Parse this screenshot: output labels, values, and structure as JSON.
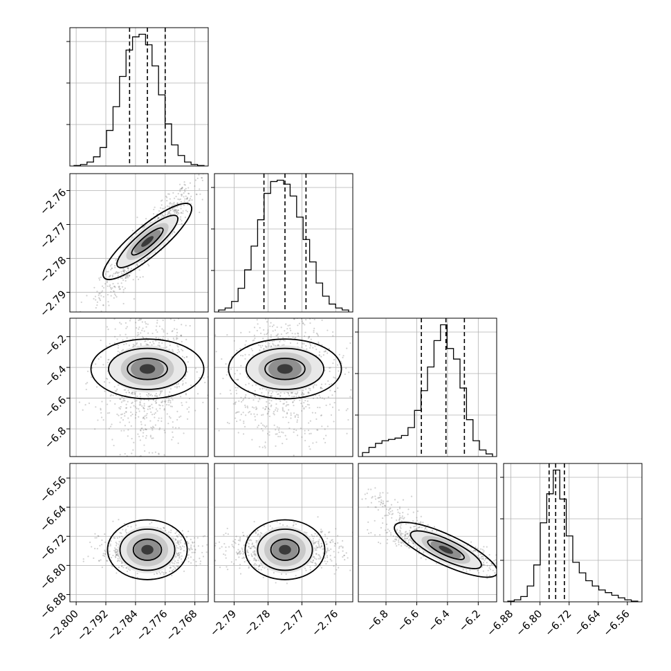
{
  "chart_data": {
    "type": "corner",
    "parameters": [
      {
        "index": 0,
        "range": [
          -2.8017,
          -2.7644
        ],
        "ticks": [
          -2.8,
          -2.792,
          -2.784,
          -2.776,
          -2.768
        ],
        "tick_labels": [
          "−2.800",
          "−2.792",
          "−2.784",
          "−2.776",
          "−2.768"
        ],
        "hist_counts": [
          0.4,
          1.2,
          3,
          7,
          14,
          27,
          45,
          68,
          88,
          98,
          100,
          92,
          76,
          54,
          32,
          16,
          8,
          3,
          1.2,
          0.4
        ],
        "quantiles": [
          -2.7856,
          -2.7808,
          -2.776
        ]
      },
      {
        "index": 1,
        "range": [
          -2.7958,
          -2.755
        ],
        "ticks": [
          -2.79,
          -2.78,
          -2.77,
          -2.76
        ],
        "tick_labels": [
          "−2.79",
          "−2.78",
          "−2.77",
          "−2.76"
        ],
        "hist_counts": [
          1.5,
          3,
          8,
          18,
          32,
          50,
          70,
          90,
          99,
          100,
          97,
          88,
          72,
          55,
          38,
          22,
          12,
          6,
          3,
          1.5
        ],
        "quantiles": [
          -2.7812,
          -2.775,
          -2.7688
        ]
      },
      {
        "index": 2,
        "range": [
          -6.98,
          -6.08
        ],
        "ticks": [
          -6.8,
          -6.6,
          -6.4,
          -6.2
        ],
        "tick_labels": [
          "−6.8",
          "−6.6",
          "−6.4",
          "−6.2"
        ],
        "hist_counts": [
          3,
          7,
          10,
          12,
          13,
          14,
          16,
          22,
          35,
          50,
          68,
          88,
          100,
          82,
          74,
          52,
          28,
          12,
          5,
          2
        ],
        "quantiles": [
          -6.57,
          -6.41,
          -6.29
        ]
      },
      {
        "index": 3,
        "range": [
          -6.9,
          -6.52
        ],
        "ticks": [
          -6.88,
          -6.8,
          -6.72,
          -6.64,
          -6.56
        ],
        "tick_labels": [
          "−6.88",
          "−6.80",
          "−6.72",
          "−6.64",
          "−6.56"
        ],
        "hist_counts": [
          0.5,
          1.5,
          4,
          12,
          28,
          60,
          82,
          100,
          78,
          50,
          30,
          22,
          16,
          12,
          9,
          7,
          5,
          3,
          1.5,
          0.5
        ],
        "quantiles": [
          -6.775,
          -6.757,
          -6.733
        ]
      }
    ],
    "ylim_1d_note": "",
    "title": "",
    "xlabel": "",
    "ylabel": ""
  }
}
